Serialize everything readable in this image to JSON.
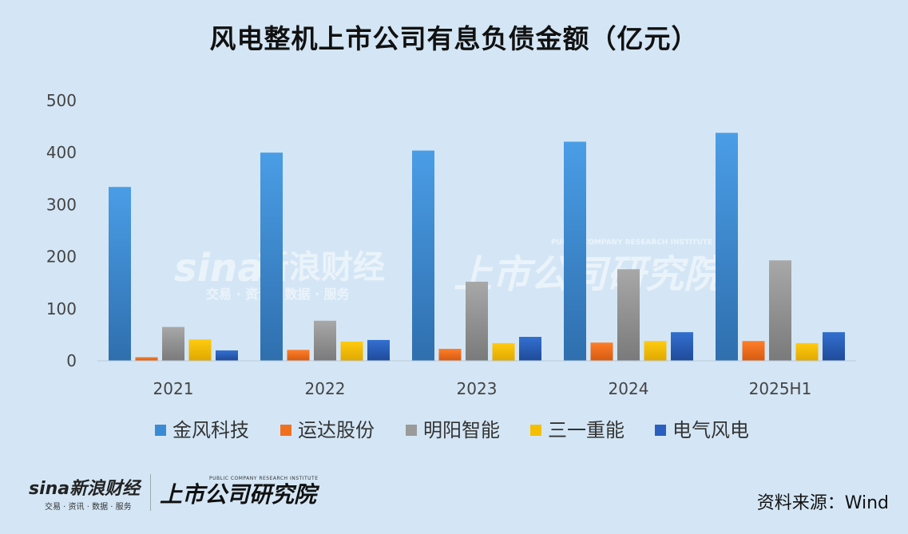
{
  "header": {
    "title": "风电整机上市公司有息负债金额（亿元）"
  },
  "chart_data": {
    "type": "bar",
    "title": "风电整机上市公司有息负债金额（亿元）",
    "categories": [
      "2021",
      "2022",
      "2023",
      "2024",
      "2025H1"
    ],
    "ylim": [
      0,
      500
    ],
    "yticks": [
      "0",
      "100",
      "200",
      "300",
      "400",
      "500"
    ],
    "grid": false,
    "legend_position": "bottom",
    "series": [
      {
        "name": "金风科技",
        "color": "#3a8ad6",
        "values": [
          334,
          400,
          404,
          421,
          438
        ]
      },
      {
        "name": "运达股份",
        "color": "#f07020",
        "values": [
          7,
          21,
          23,
          35,
          38
        ]
      },
      {
        "name": "明阳智能",
        "color": "#9a9a9a",
        "values": [
          65,
          77,
          152,
          176,
          193
        ]
      },
      {
        "name": "三一重能",
        "color": "#f5bf00",
        "values": [
          41,
          37,
          34,
          38,
          34
        ]
      },
      {
        "name": "电气风电",
        "color": "#2a5fbf",
        "values": [
          20,
          40,
          46,
          55,
          55
        ]
      }
    ]
  },
  "watermark": {
    "brand": "sina",
    "brand_cn": "新浪财经",
    "brand_sub": "交易 · 资讯 · 数据 · 服务",
    "institute": "上市公司研究院",
    "institute_en": "PUBLIC COMPANY RESEARCH INSTITUTE"
  },
  "footer": {
    "brand": "sina新浪财经",
    "brand_sub": "交易 · 资讯 · 数据 · 服务",
    "institute": "上市公司研究院",
    "institute_en": "PUBLIC COMPANY RESEARCH INSTITUTE",
    "source": "资料来源：Wind"
  }
}
